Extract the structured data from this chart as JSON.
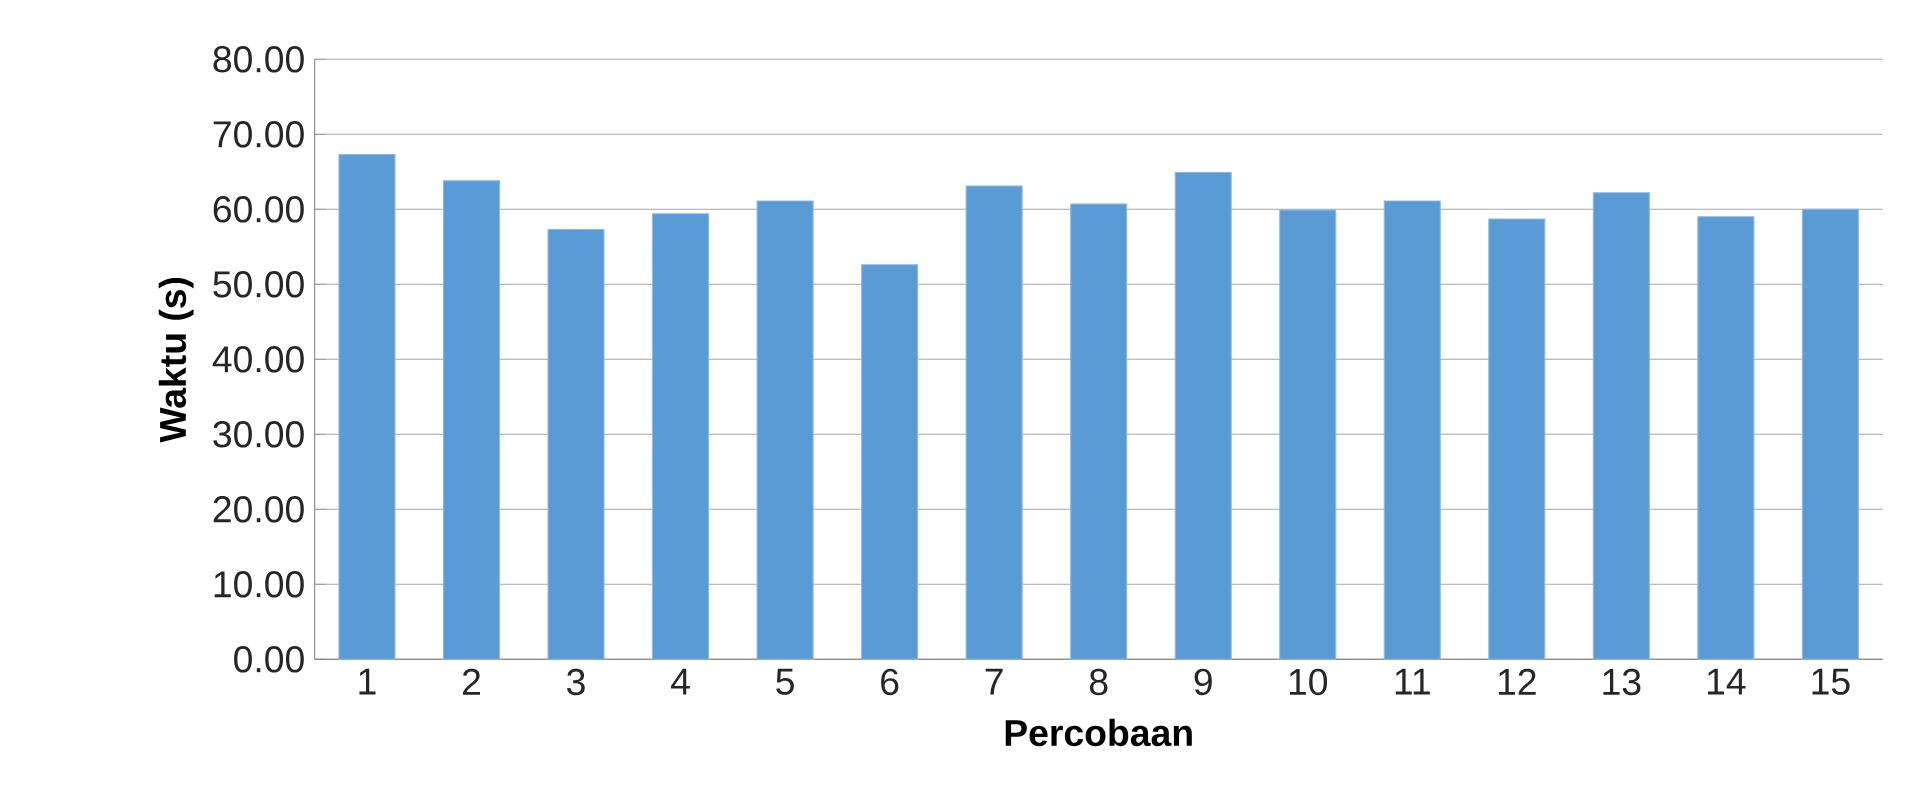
{
  "chart_data": {
    "type": "bar",
    "xlabel": "Percobaan",
    "ylabel": "Waktu (s)",
    "categories": [
      "1",
      "2",
      "3",
      "4",
      "5",
      "6",
      "7",
      "8",
      "9",
      "10",
      "11",
      "12",
      "13",
      "14",
      "15"
    ],
    "values": [
      67.3,
      63.8,
      57.3,
      59.4,
      61.1,
      52.6,
      63.1,
      60.7,
      64.9,
      59.9,
      61.1,
      58.7,
      62.2,
      59.0,
      60.0
    ],
    "color": "#5b9bd5",
    "ylim": [
      0,
      80
    ],
    "yticks": [
      {
        "value": 0,
        "label": "0.00"
      },
      {
        "value": 10,
        "label": "10.00"
      },
      {
        "value": 20,
        "label": "20.00"
      },
      {
        "value": 30,
        "label": "30.00"
      },
      {
        "value": 40,
        "label": "40.00"
      },
      {
        "value": 50,
        "label": "50.00"
      },
      {
        "value": 60,
        "label": "60.00"
      },
      {
        "value": 70,
        "label": "70.00"
      },
      {
        "value": 80,
        "label": "80.00"
      }
    ],
    "grid": "y"
  }
}
